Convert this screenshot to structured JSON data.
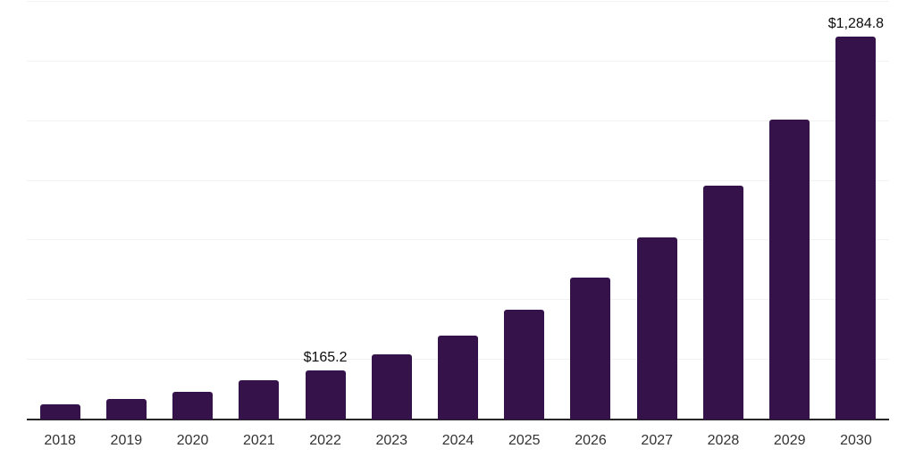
{
  "chart_data": {
    "type": "bar",
    "categories": [
      "2018",
      "2019",
      "2020",
      "2021",
      "2022",
      "2023",
      "2024",
      "2025",
      "2026",
      "2027",
      "2028",
      "2029",
      "2030"
    ],
    "values": [
      52,
      68,
      94,
      131,
      165.2,
      218,
      281,
      367,
      476,
      610,
      783,
      1005,
      1284.8
    ],
    "annotations": [
      {
        "category": "2022",
        "text": "$165.2"
      },
      {
        "category": "2030",
        "text": "$1,284.8"
      }
    ],
    "ylim": [
      0,
      1400
    ],
    "y_gridline_step": 200,
    "grid": true,
    "legend": "none",
    "xlabel": "",
    "ylabel": ""
  },
  "colors": {
    "bar": "#35124a",
    "gridline": "#f2f2f2",
    "axis_line": "#262626",
    "tick_label": "#333333",
    "value_label": "#0d0d0d",
    "background": "#ffffff"
  }
}
